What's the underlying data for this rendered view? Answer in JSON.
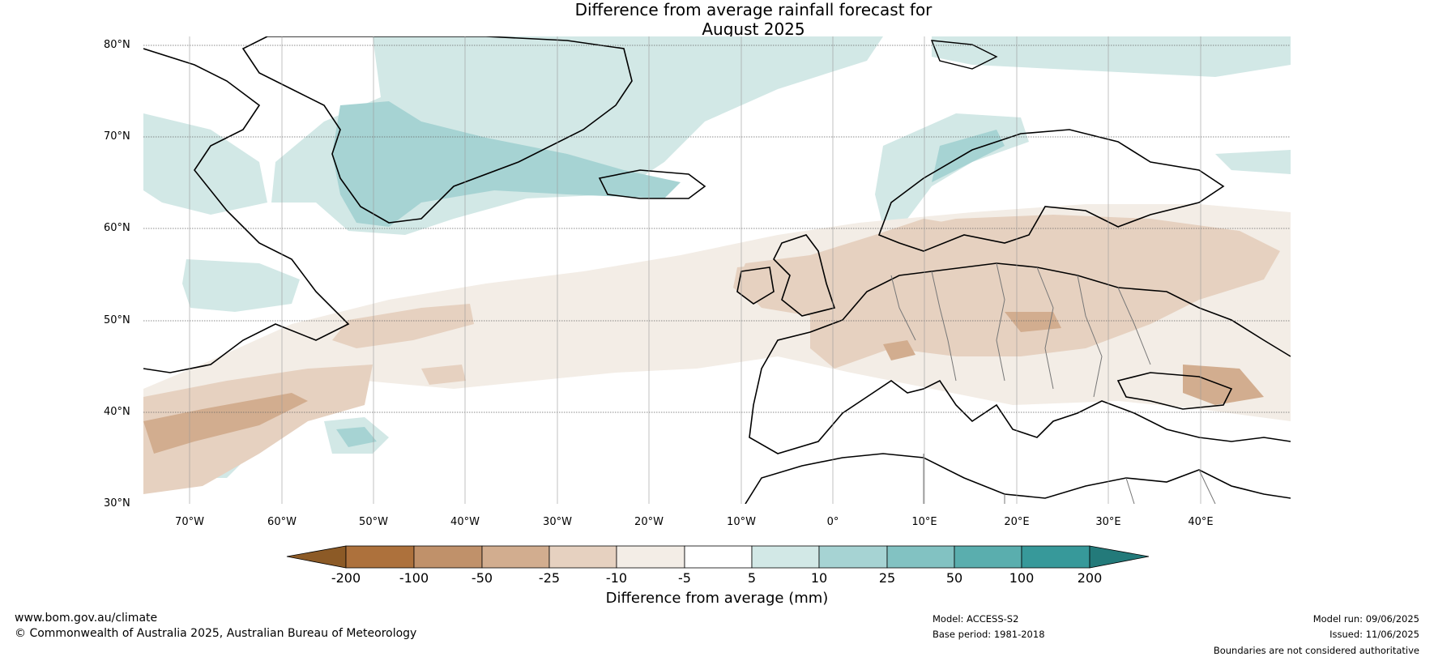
{
  "title_line1": "Difference from average rainfall forecast for",
  "title_line2": "August 2025",
  "lat_labels": [
    "80°N",
    "70°N",
    "60°N",
    "50°N",
    "40°N",
    "30°N"
  ],
  "lon_labels": [
    "70°W",
    "60°W",
    "50°W",
    "40°W",
    "30°W",
    "20°W",
    "10°W",
    "0°",
    "10°E",
    "20°E",
    "30°E",
    "40°E"
  ],
  "colorbar": {
    "ticks": [
      "-200",
      "-100",
      "-50",
      "-25",
      "-10",
      "-5",
      "5",
      "10",
      "25",
      "50",
      "100",
      "200"
    ],
    "colors": [
      "#8c5a26",
      "#ad713c",
      "#c0916a",
      "#d2ad8f",
      "#e6d1c0",
      "#f3ede6",
      "#ffffff",
      "#d2e8e6",
      "#a6d3d3",
      "#82c2c2",
      "#5aaeae",
      "#37999a",
      "#237a7a"
    ],
    "title": "Difference from average (mm)"
  },
  "footer": {
    "website": "www.bom.gov.au/climate",
    "copyright": "© Commonwealth of Australia 2025, Australian Bureau of Meteorology",
    "model": "Model: ACCESS-S2",
    "base_period": "Base period: 1981-2018",
    "model_run": "Model run: 09/06/2025",
    "issued": "Issued: 11/06/2025",
    "disclaimer": "Boundaries are not considered authoritative"
  }
}
